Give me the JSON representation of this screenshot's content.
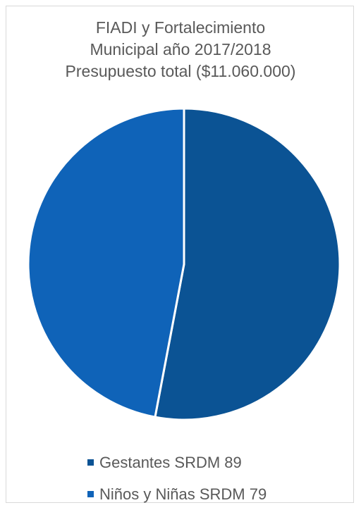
{
  "chart_data": {
    "type": "pie",
    "title_lines": [
      "FIADI y Fortalecimiento",
      "Municipal año 2017/2018",
      "Presupuesto total ($11.060.000)"
    ],
    "categories": [
      "Gestantes SRDM 89",
      "Niños y Niñas SRDM 79"
    ],
    "values": [
      89,
      79
    ],
    "colors": [
      "#0b5394",
      "#0f63b8"
    ],
    "legend_position": "bottom"
  }
}
